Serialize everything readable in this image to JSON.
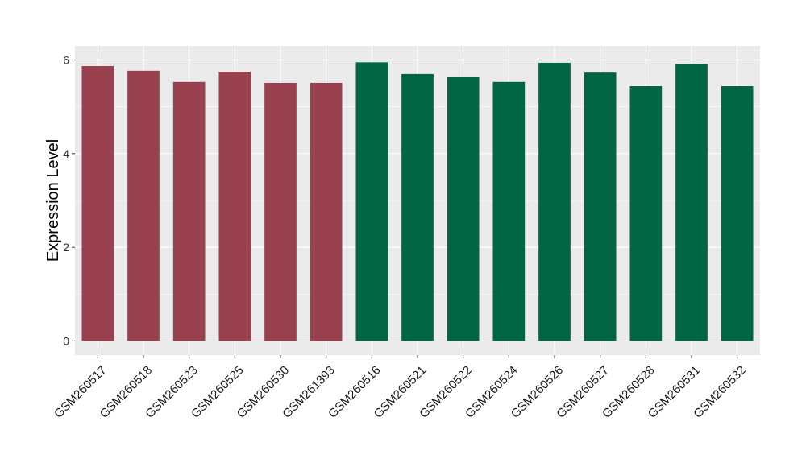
{
  "chart_data": {
    "type": "bar",
    "title": "",
    "xlabel": "",
    "ylabel": "Expression Level",
    "ylim": [
      -0.3,
      6.3
    ],
    "yticks": [
      0,
      2,
      4,
      6
    ],
    "grid": true,
    "legend": "none",
    "background_color": "#ebebeb",
    "categories": [
      "GSM260517",
      "GSM260518",
      "GSM260523",
      "GSM260525",
      "GSM260530",
      "GSM261393",
      "GSM260516",
      "GSM260521",
      "GSM260522",
      "GSM260524",
      "GSM260526",
      "GSM260527",
      "GSM260528",
      "GSM260531",
      "GSM260532"
    ],
    "values": [
      5.87,
      5.77,
      5.53,
      5.75,
      5.51,
      5.51,
      5.95,
      5.7,
      5.63,
      5.53,
      5.94,
      5.73,
      5.44,
      5.91,
      5.44
    ],
    "bar_colors": [
      "#99414f",
      "#99414f",
      "#99414f",
      "#99414f",
      "#99414f",
      "#99414f",
      "#006644",
      "#006644",
      "#006644",
      "#006644",
      "#006644",
      "#006644",
      "#006644",
      "#006644",
      "#006644"
    ]
  }
}
